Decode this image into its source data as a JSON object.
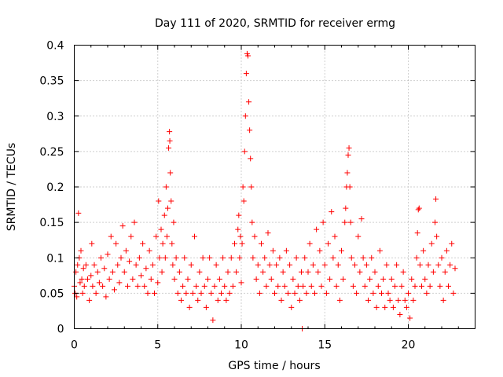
{
  "chart_data": {
    "type": "scatter",
    "title": "Day 111 of 2020, SRMTID for receiver ermg",
    "xlabel": "GPS time / hours",
    "ylabel": "SRMTID / TECUs",
    "xlim": [
      0,
      24
    ],
    "ylim": [
      0,
      0.4
    ],
    "xticks": [
      0,
      5,
      10,
      15,
      20
    ],
    "xtick_labels": [
      "0",
      "5",
      "10",
      "15",
      "20"
    ],
    "yticks": [
      0,
      0.05,
      0.1,
      0.15,
      0.2,
      0.25,
      0.3,
      0.35,
      0.4
    ],
    "ytick_labels": [
      "0",
      "0.05",
      "0.1",
      "0.15",
      "0.2",
      "0.25",
      "0.3",
      "0.35",
      "0.4"
    ],
    "grid": true,
    "marker": "plus",
    "color": "#ff0000",
    "series": [
      {
        "name": "SRMTID",
        "points": [
          [
            0.0,
            0.06
          ],
          [
            0.05,
            0.05
          ],
          [
            0.1,
            0.08
          ],
          [
            0.15,
            0.045
          ],
          [
            0.2,
            0.09
          ],
          [
            0.25,
            0.163
          ],
          [
            0.3,
            0.1
          ],
          [
            0.35,
            0.065
          ],
          [
            0.4,
            0.11
          ],
          [
            0.45,
            0.07
          ],
          [
            0.5,
            0.05
          ],
          [
            0.55,
            0.085
          ],
          [
            0.6,
            0.06
          ],
          [
            0.7,
            0.09
          ],
          [
            0.8,
            0.07
          ],
          [
            0.9,
            0.04
          ],
          [
            1.0,
            0.075
          ],
          [
            1.05,
            0.12
          ],
          [
            1.1,
            0.06
          ],
          [
            1.2,
            0.09
          ],
          [
            1.3,
            0.05
          ],
          [
            1.4,
            0.08
          ],
          [
            1.5,
            0.065
          ],
          [
            1.6,
            0.1
          ],
          [
            1.7,
            0.06
          ],
          [
            1.8,
            0.085
          ],
          [
            1.9,
            0.045
          ],
          [
            2.0,
            0.105
          ],
          [
            2.1,
            0.07
          ],
          [
            2.2,
            0.13
          ],
          [
            2.3,
            0.08
          ],
          [
            2.4,
            0.055
          ],
          [
            2.5,
            0.12
          ],
          [
            2.6,
            0.09
          ],
          [
            2.7,
            0.065
          ],
          [
            2.8,
            0.1
          ],
          [
            2.9,
            0.145
          ],
          [
            3.0,
            0.08
          ],
          [
            3.1,
            0.11
          ],
          [
            3.2,
            0.06
          ],
          [
            3.3,
            0.095
          ],
          [
            3.4,
            0.13
          ],
          [
            3.5,
            0.07
          ],
          [
            3.6,
            0.15
          ],
          [
            3.7,
            0.09
          ],
          [
            3.8,
            0.06
          ],
          [
            3.9,
            0.1
          ],
          [
            4.0,
            0.075
          ],
          [
            4.1,
            0.12
          ],
          [
            4.2,
            0.06
          ],
          [
            4.3,
            0.085
          ],
          [
            4.4,
            0.05
          ],
          [
            4.5,
            0.11
          ],
          [
            4.6,
            0.07
          ],
          [
            4.7,
            0.09
          ],
          [
            4.8,
            0.05
          ],
          [
            4.9,
            0.13
          ],
          [
            5.0,
            0.065
          ],
          [
            5.05,
            0.18
          ],
          [
            5.1,
            0.1
          ],
          [
            5.2,
            0.14
          ],
          [
            5.25,
            0.08
          ],
          [
            5.3,
            0.12
          ],
          [
            5.4,
            0.16
          ],
          [
            5.45,
            0.1
          ],
          [
            5.5,
            0.2
          ],
          [
            5.55,
            0.13
          ],
          [
            5.6,
            0.17
          ],
          [
            5.65,
            0.255
          ],
          [
            5.7,
            0.278
          ],
          [
            5.72,
            0.265
          ],
          [
            5.75,
            0.22
          ],
          [
            5.8,
            0.18
          ],
          [
            5.85,
            0.12
          ],
          [
            5.9,
            0.09
          ],
          [
            5.95,
            0.15
          ],
          [
            6.0,
            0.07
          ],
          [
            6.1,
            0.1
          ],
          [
            6.2,
            0.05
          ],
          [
            6.3,
            0.08
          ],
          [
            6.4,
            0.04
          ],
          [
            6.5,
            0.06
          ],
          [
            6.6,
            0.1
          ],
          [
            6.7,
            0.05
          ],
          [
            6.8,
            0.07
          ],
          [
            6.9,
            0.03
          ],
          [
            7.0,
            0.09
          ],
          [
            7.1,
            0.05
          ],
          [
            7.2,
            0.13
          ],
          [
            7.3,
            0.06
          ],
          [
            7.4,
            0.04
          ],
          [
            7.5,
            0.08
          ],
          [
            7.6,
            0.05
          ],
          [
            7.7,
            0.1
          ],
          [
            7.8,
            0.06
          ],
          [
            7.9,
            0.03
          ],
          [
            8.0,
            0.07
          ],
          [
            8.1,
            0.1
          ],
          [
            8.2,
            0.05
          ],
          [
            8.3,
            0.012
          ],
          [
            8.4,
            0.06
          ],
          [
            8.5,
            0.09
          ],
          [
            8.6,
            0.04
          ],
          [
            8.7,
            0.07
          ],
          [
            8.8,
            0.05
          ],
          [
            8.9,
            0.1
          ],
          [
            9.0,
            0.06
          ],
          [
            9.1,
            0.04
          ],
          [
            9.2,
            0.08
          ],
          [
            9.3,
            0.05
          ],
          [
            9.4,
            0.1
          ],
          [
            9.5,
            0.06
          ],
          [
            9.6,
            0.12
          ],
          [
            9.7,
            0.08
          ],
          [
            9.8,
            0.14
          ],
          [
            9.85,
            0.16
          ],
          [
            9.9,
            0.1
          ],
          [
            9.95,
            0.13
          ],
          [
            10.0,
            0.065
          ],
          [
            10.05,
            0.12
          ],
          [
            10.1,
            0.2
          ],
          [
            10.15,
            0.18
          ],
          [
            10.2,
            0.25
          ],
          [
            10.25,
            0.3
          ],
          [
            10.3,
            0.36
          ],
          [
            10.35,
            0.388
          ],
          [
            10.4,
            0.385
          ],
          [
            10.45,
            0.32
          ],
          [
            10.5,
            0.28
          ],
          [
            10.55,
            0.24
          ],
          [
            10.6,
            0.2
          ],
          [
            10.65,
            0.15
          ],
          [
            10.7,
            0.1
          ],
          [
            10.8,
            0.13
          ],
          [
            10.9,
            0.07
          ],
          [
            11.0,
            0.09
          ],
          [
            11.1,
            0.05
          ],
          [
            11.2,
            0.12
          ],
          [
            11.3,
            0.08
          ],
          [
            11.4,
            0.1
          ],
          [
            11.5,
            0.06
          ],
          [
            11.6,
            0.135
          ],
          [
            11.7,
            0.09
          ],
          [
            11.8,
            0.07
          ],
          [
            11.9,
            0.11
          ],
          [
            12.0,
            0.05
          ],
          [
            12.1,
            0.09
          ],
          [
            12.2,
            0.06
          ],
          [
            12.3,
            0.1
          ],
          [
            12.4,
            0.04
          ],
          [
            12.5,
            0.08
          ],
          [
            12.6,
            0.06
          ],
          [
            12.7,
            0.11
          ],
          [
            12.8,
            0.05
          ],
          [
            12.9,
            0.09
          ],
          [
            13.0,
            0.03
          ],
          [
            13.1,
            0.07
          ],
          [
            13.2,
            0.05
          ],
          [
            13.3,
            0.1
          ],
          [
            13.4,
            0.06
          ],
          [
            13.5,
            0.04
          ],
          [
            13.6,
            0.08
          ],
          [
            13.65,
            0.0
          ],
          [
            13.7,
            0.06
          ],
          [
            13.8,
            0.1
          ],
          [
            13.9,
            0.05
          ],
          [
            14.0,
            0.08
          ],
          [
            14.1,
            0.12
          ],
          [
            14.2,
            0.06
          ],
          [
            14.3,
            0.09
          ],
          [
            14.4,
            0.05
          ],
          [
            14.5,
            0.14
          ],
          [
            14.6,
            0.08
          ],
          [
            14.7,
            0.11
          ],
          [
            14.8,
            0.06
          ],
          [
            14.9,
            0.15
          ],
          [
            15.0,
            0.09
          ],
          [
            15.1,
            0.05
          ],
          [
            15.2,
            0.12
          ],
          [
            15.3,
            0.07
          ],
          [
            15.4,
            0.165
          ],
          [
            15.5,
            0.1
          ],
          [
            15.6,
            0.13
          ],
          [
            15.7,
            0.06
          ],
          [
            15.8,
            0.09
          ],
          [
            15.9,
            0.04
          ],
          [
            16.0,
            0.11
          ],
          [
            16.1,
            0.07
          ],
          [
            16.2,
            0.15
          ],
          [
            16.25,
            0.17
          ],
          [
            16.3,
            0.2
          ],
          [
            16.35,
            0.22
          ],
          [
            16.4,
            0.245
          ],
          [
            16.45,
            0.255
          ],
          [
            16.5,
            0.2
          ],
          [
            16.55,
            0.15
          ],
          [
            16.6,
            0.1
          ],
          [
            16.7,
            0.06
          ],
          [
            16.8,
            0.09
          ],
          [
            16.9,
            0.05
          ],
          [
            17.0,
            0.13
          ],
          [
            17.1,
            0.08
          ],
          [
            17.2,
            0.155
          ],
          [
            17.3,
            0.1
          ],
          [
            17.4,
            0.06
          ],
          [
            17.5,
            0.09
          ],
          [
            17.6,
            0.04
          ],
          [
            17.7,
            0.07
          ],
          [
            17.8,
            0.1
          ],
          [
            17.9,
            0.05
          ],
          [
            18.0,
            0.08
          ],
          [
            18.1,
            0.03
          ],
          [
            18.2,
            0.06
          ],
          [
            18.3,
            0.11
          ],
          [
            18.4,
            0.05
          ],
          [
            18.5,
            0.07
          ],
          [
            18.6,
            0.03
          ],
          [
            18.7,
            0.09
          ],
          [
            18.8,
            0.05
          ],
          [
            18.9,
            0.04
          ],
          [
            19.0,
            0.07
          ],
          [
            19.1,
            0.03
          ],
          [
            19.2,
            0.06
          ],
          [
            19.3,
            0.09
          ],
          [
            19.4,
            0.04
          ],
          [
            19.5,
            0.02
          ],
          [
            19.6,
            0.06
          ],
          [
            19.7,
            0.08
          ],
          [
            19.8,
            0.04
          ],
          [
            19.9,
            0.03
          ],
          [
            20.0,
            0.05
          ],
          [
            20.1,
            0.015
          ],
          [
            20.2,
            0.07
          ],
          [
            20.3,
            0.04
          ],
          [
            20.4,
            0.06
          ],
          [
            20.5,
            0.1
          ],
          [
            20.55,
            0.135
          ],
          [
            20.6,
            0.168
          ],
          [
            20.65,
            0.17
          ],
          [
            20.7,
            0.09
          ],
          [
            20.8,
            0.06
          ],
          [
            20.9,
            0.11
          ],
          [
            21.0,
            0.07
          ],
          [
            21.1,
            0.05
          ],
          [
            21.2,
            0.09
          ],
          [
            21.3,
            0.06
          ],
          [
            21.4,
            0.12
          ],
          [
            21.5,
            0.08
          ],
          [
            21.6,
            0.15
          ],
          [
            21.65,
            0.183
          ],
          [
            21.7,
            0.13
          ],
          [
            21.8,
            0.09
          ],
          [
            21.9,
            0.06
          ],
          [
            22.0,
            0.1
          ],
          [
            22.1,
            0.04
          ],
          [
            22.2,
            0.08
          ],
          [
            22.3,
            0.11
          ],
          [
            22.4,
            0.06
          ],
          [
            22.5,
            0.09
          ],
          [
            22.6,
            0.12
          ],
          [
            22.7,
            0.05
          ],
          [
            22.8,
            0.085
          ]
        ]
      }
    ]
  }
}
